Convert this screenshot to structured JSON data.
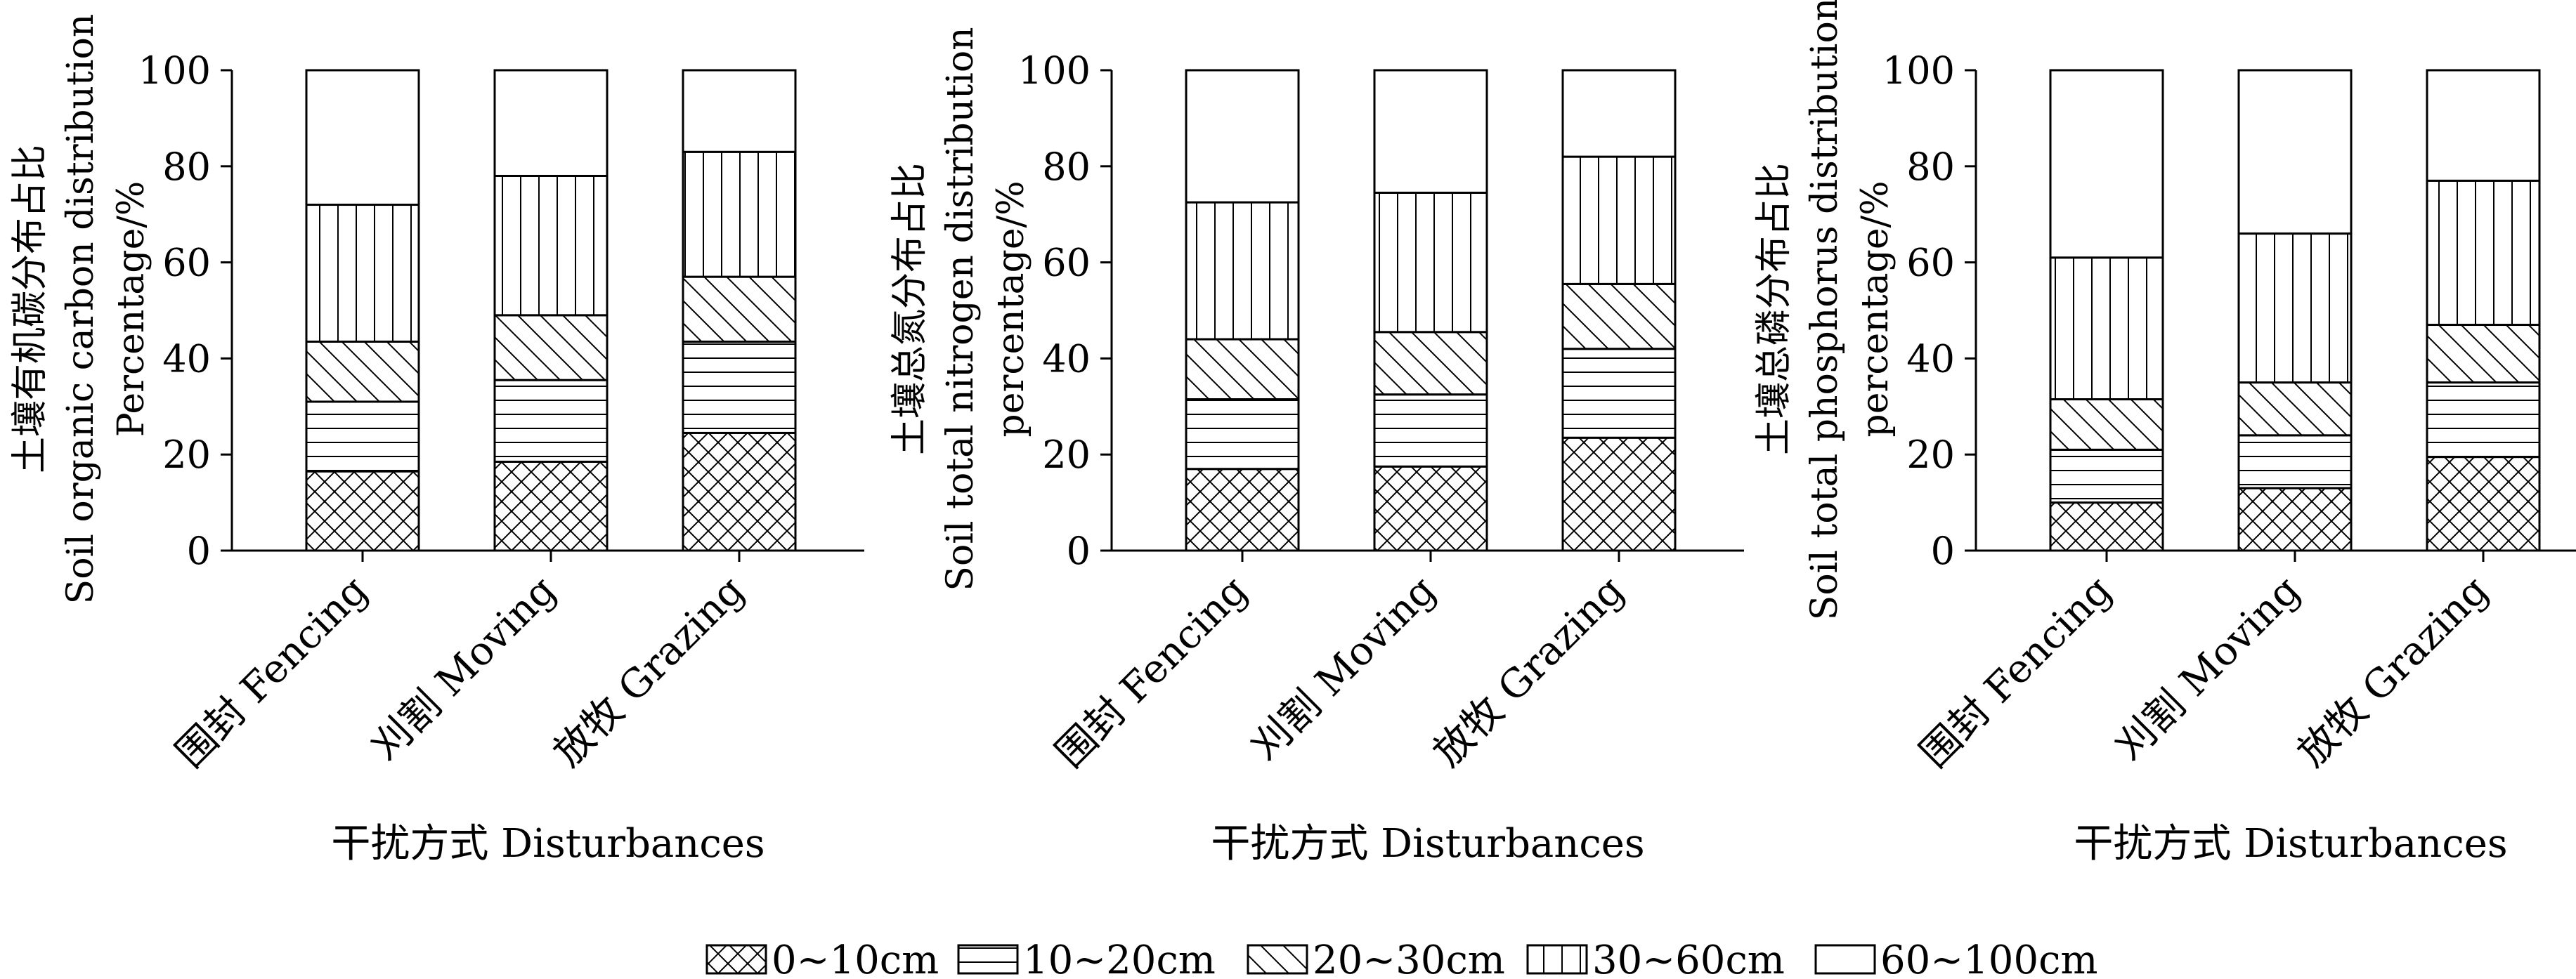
{
  "chart_data": [
    {
      "type": "bar",
      "stacked": true,
      "categories": [
        "围封 Fencing",
        "刈割 Moving",
        "放牧 Grazing"
      ],
      "series": [
        {
          "name": "0~10cm",
          "values": [
            16.5,
            18.5,
            24.5
          ]
        },
        {
          "name": "10~20cm",
          "values": [
            14.5,
            17.0,
            19.0
          ]
        },
        {
          "name": "20~30cm",
          "values": [
            12.5,
            13.5,
            13.5
          ]
        },
        {
          "name": "30~60cm",
          "values": [
            28.5,
            29.0,
            26.0
          ]
        },
        {
          "name": "60~100cm",
          "values": [
            28.0,
            22.0,
            17.0
          ]
        }
      ],
      "ylabel_lines": [
        "土壤有机碳分布占比",
        "Soil organic carbon distribution",
        "Percentage/%"
      ],
      "xlabel": "干扰方式 Disturbances",
      "ylim": [
        0,
        100
      ],
      "yticks": [
        0,
        20,
        40,
        60,
        80,
        100
      ],
      "grid": false
    },
    {
      "type": "bar",
      "stacked": true,
      "categories": [
        "围封 Fencing",
        "刈割 Moving",
        "放牧 Grazing"
      ],
      "series": [
        {
          "name": "0~10cm",
          "values": [
            17.0,
            17.5,
            23.5
          ]
        },
        {
          "name": "10~20cm",
          "values": [
            14.5,
            15.0,
            18.5
          ]
        },
        {
          "name": "20~30cm",
          "values": [
            12.5,
            13.0,
            13.5
          ]
        },
        {
          "name": "30~60cm",
          "values": [
            28.5,
            29.0,
            26.5
          ]
        },
        {
          "name": "60~100cm",
          "values": [
            27.5,
            25.5,
            18.0
          ]
        }
      ],
      "ylabel_lines": [
        "土壤总氮分布占比",
        "Soil total nitrogen distribution",
        "percentage/%"
      ],
      "xlabel": "干扰方式 Disturbances",
      "ylim": [
        0,
        100
      ],
      "yticks": [
        0,
        20,
        40,
        60,
        80,
        100
      ],
      "grid": false
    },
    {
      "type": "bar",
      "stacked": true,
      "categories": [
        "围封 Fencing",
        "刈割 Moving",
        "放牧 Grazing"
      ],
      "series": [
        {
          "name": "0~10cm",
          "values": [
            10.0,
            13.0,
            19.5
          ]
        },
        {
          "name": "10~20cm",
          "values": [
            11.0,
            11.0,
            15.5
          ]
        },
        {
          "name": "20~30cm",
          "values": [
            10.5,
            11.0,
            12.0
          ]
        },
        {
          "name": "30~60cm",
          "values": [
            29.5,
            31.0,
            30.0
          ]
        },
        {
          "name": "60~100cm",
          "values": [
            39.0,
            34.0,
            23.0
          ]
        }
      ],
      "ylabel_lines": [
        "土壤总磷分布占比",
        "Soil total phosphorus distribution",
        "percentage/%"
      ],
      "xlabel": "干扰方式 Disturbances",
      "ylim": [
        0,
        100
      ],
      "yticks": [
        0,
        20,
        40,
        60,
        80,
        100
      ],
      "grid": false
    }
  ],
  "legend": {
    "position": "bottom-center",
    "items": [
      {
        "label": "0~10cm",
        "pattern": "crosshatch"
      },
      {
        "label": "10~20cm",
        "pattern": "horizontal"
      },
      {
        "label": "20~30cm",
        "pattern": "diagonal"
      },
      {
        "label": "30~60cm",
        "pattern": "vertical"
      },
      {
        "label": "60~100cm",
        "pattern": "blank"
      }
    ]
  }
}
